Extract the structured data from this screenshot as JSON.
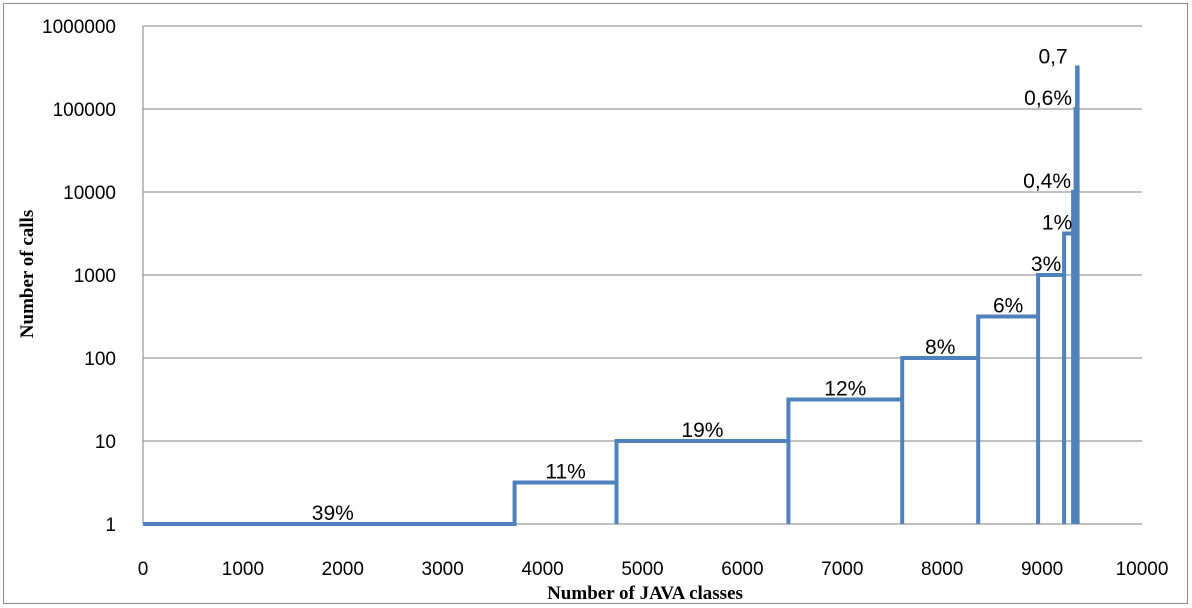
{
  "chart_data": {
    "type": "line",
    "title": "",
    "xlabel": "Number of JAVA classes",
    "ylabel": "Number of calls",
    "xlim": [
      0,
      10000
    ],
    "ylim": [
      1,
      1000000
    ],
    "y_scale": "log",
    "grid": "horizontal",
    "legend": "none",
    "line_color": "#4f81bd",
    "x_ticks": [
      "0",
      "1000",
      "2000",
      "3000",
      "4000",
      "5000",
      "6000",
      "7000",
      "8000",
      "9000",
      "10000"
    ],
    "y_ticks": [
      "1",
      "10",
      "100",
      "1000",
      "10000",
      "100000",
      "1000000"
    ],
    "steps": [
      {
        "x_start": 0,
        "x_end": 3720,
        "y": 1,
        "label": "39%",
        "label_x": 1900
      },
      {
        "x_start": 3720,
        "x_end": 4740,
        "y": 3.16,
        "label": "11%",
        "label_x": 4230
      },
      {
        "x_start": 4740,
        "x_end": 6460,
        "y": 10,
        "label": "19%",
        "label_x": 5600
      },
      {
        "x_start": 6460,
        "x_end": 7600,
        "y": 31.6,
        "label": "12%",
        "label_x": 7030
      },
      {
        "x_start": 7600,
        "x_end": 8360,
        "y": 100,
        "label": "8%",
        "label_x": 7980
      },
      {
        "x_start": 8360,
        "x_end": 8960,
        "y": 316,
        "label": "6%",
        "label_x": 8660
      },
      {
        "x_start": 8960,
        "x_end": 9220,
        "y": 1000,
        "label": "3%",
        "label_x": 9040
      },
      {
        "x_start": 9220,
        "x_end": 9310,
        "y": 3160,
        "label": "1%",
        "label_x": 9150
      },
      {
        "x_start": 9310,
        "x_end": 9335,
        "y": 10000,
        "label": "0,4%",
        "label_x": 9050
      },
      {
        "x_start": 9335,
        "x_end": 9350,
        "y": 100000,
        "label": "0,6%",
        "label_x": 9060
      },
      {
        "x_start": 9350,
        "x_end": 9355,
        "y": 316000,
        "label": "0,7",
        "label_x": 9110
      }
    ]
  }
}
